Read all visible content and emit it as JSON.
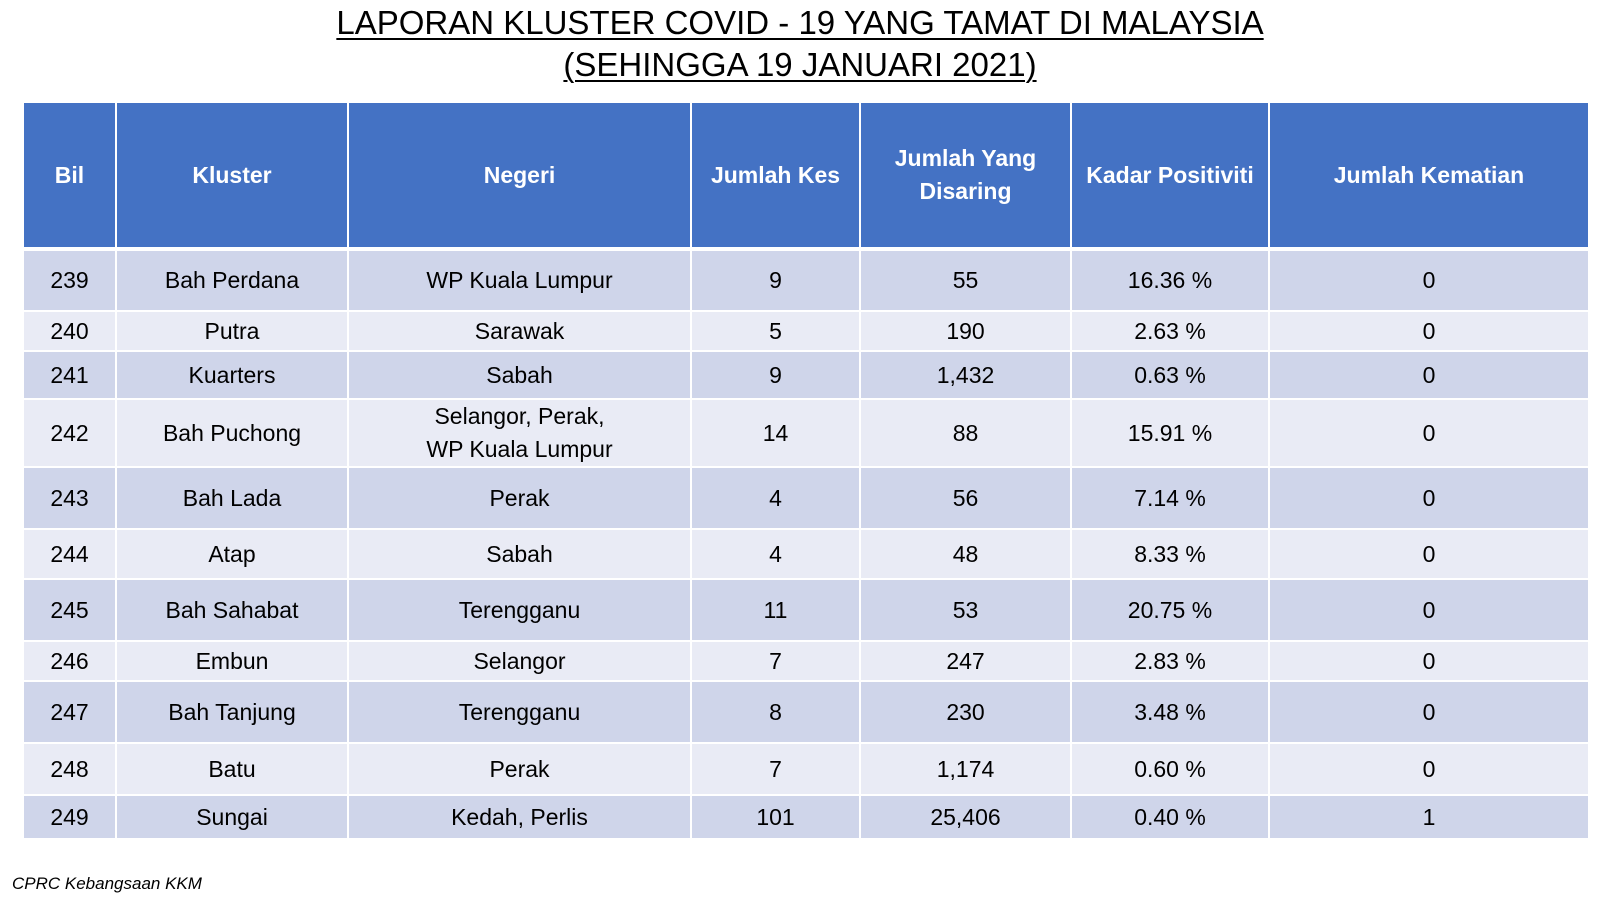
{
  "title": {
    "line1": "LAPORAN KLUSTER COVID - 19 YANG TAMAT DI MALAYSIA",
    "line2": "(SEHINGGA 19 JANUARI 2021)"
  },
  "table": {
    "headers": {
      "bil": "Bil",
      "kluster": "Kluster",
      "negeri": "Negeri",
      "jumlah_kes": "Jumlah Kes",
      "disaring_1": "Jumlah Yang",
      "disaring_2": "Disaring",
      "kadar": "Kadar Positiviti",
      "kematian": "Jumlah Kematian"
    },
    "rows": [
      {
        "bil": "239",
        "kluster": "Bah Perdana",
        "negeri": "WP Kuala Lumpur",
        "negeri2": "",
        "kes": "9",
        "disaring": "55",
        "kadar": "16.36 %",
        "kematian": "0"
      },
      {
        "bil": "240",
        "kluster": "Putra",
        "negeri": "Sarawak",
        "negeri2": "",
        "kes": "5",
        "disaring": "190",
        "kadar": "2.63 %",
        "kematian": "0"
      },
      {
        "bil": "241",
        "kluster": "Kuarters",
        "negeri": "Sabah",
        "negeri2": "",
        "kes": "9",
        "disaring": "1,432",
        "kadar": "0.63 %",
        "kematian": "0"
      },
      {
        "bil": "242",
        "kluster": "Bah Puchong",
        "negeri": "Selangor, Perak,",
        "negeri2": "WP Kuala Lumpur",
        "kes": "14",
        "disaring": "88",
        "kadar": "15.91 %",
        "kematian": "0"
      },
      {
        "bil": "243",
        "kluster": "Bah Lada",
        "negeri": "Perak",
        "negeri2": "",
        "kes": "4",
        "disaring": "56",
        "kadar": "7.14 %",
        "kematian": "0"
      },
      {
        "bil": "244",
        "kluster": "Atap",
        "negeri": "Sabah",
        "negeri2": "",
        "kes": "4",
        "disaring": "48",
        "kadar": "8.33 %",
        "kematian": "0"
      },
      {
        "bil": "245",
        "kluster": "Bah Sahabat",
        "negeri": "Terengganu",
        "negeri2": "",
        "kes": "11",
        "disaring": "53",
        "kadar": "20.75 %",
        "kematian": "0"
      },
      {
        "bil": "246",
        "kluster": "Embun",
        "negeri": "Selangor",
        "negeri2": "",
        "kes": "7",
        "disaring": "247",
        "kadar": "2.83 %",
        "kematian": "0"
      },
      {
        "bil": "247",
        "kluster": "Bah Tanjung",
        "negeri": "Terengganu",
        "negeri2": "",
        "kes": "8",
        "disaring": "230",
        "kadar": "3.48 %",
        "kematian": "0"
      },
      {
        "bil": "248",
        "kluster": "Batu",
        "negeri": "Perak",
        "negeri2": "",
        "kes": "7",
        "disaring": "1,174",
        "kadar": "0.60 %",
        "kematian": "0"
      },
      {
        "bil": "249",
        "kluster": "Sungai",
        "negeri": "Kedah, Perlis",
        "negeri2": "",
        "kes": "101",
        "disaring": "25,406",
        "kadar": "0.40 %",
        "kematian": "1"
      }
    ]
  },
  "source": "CPRC Kebangsaan KKM",
  "colors": {
    "header_bg": "#4472c4",
    "row_odd": "#cfd5ea",
    "row_even": "#e9ebf5"
  }
}
